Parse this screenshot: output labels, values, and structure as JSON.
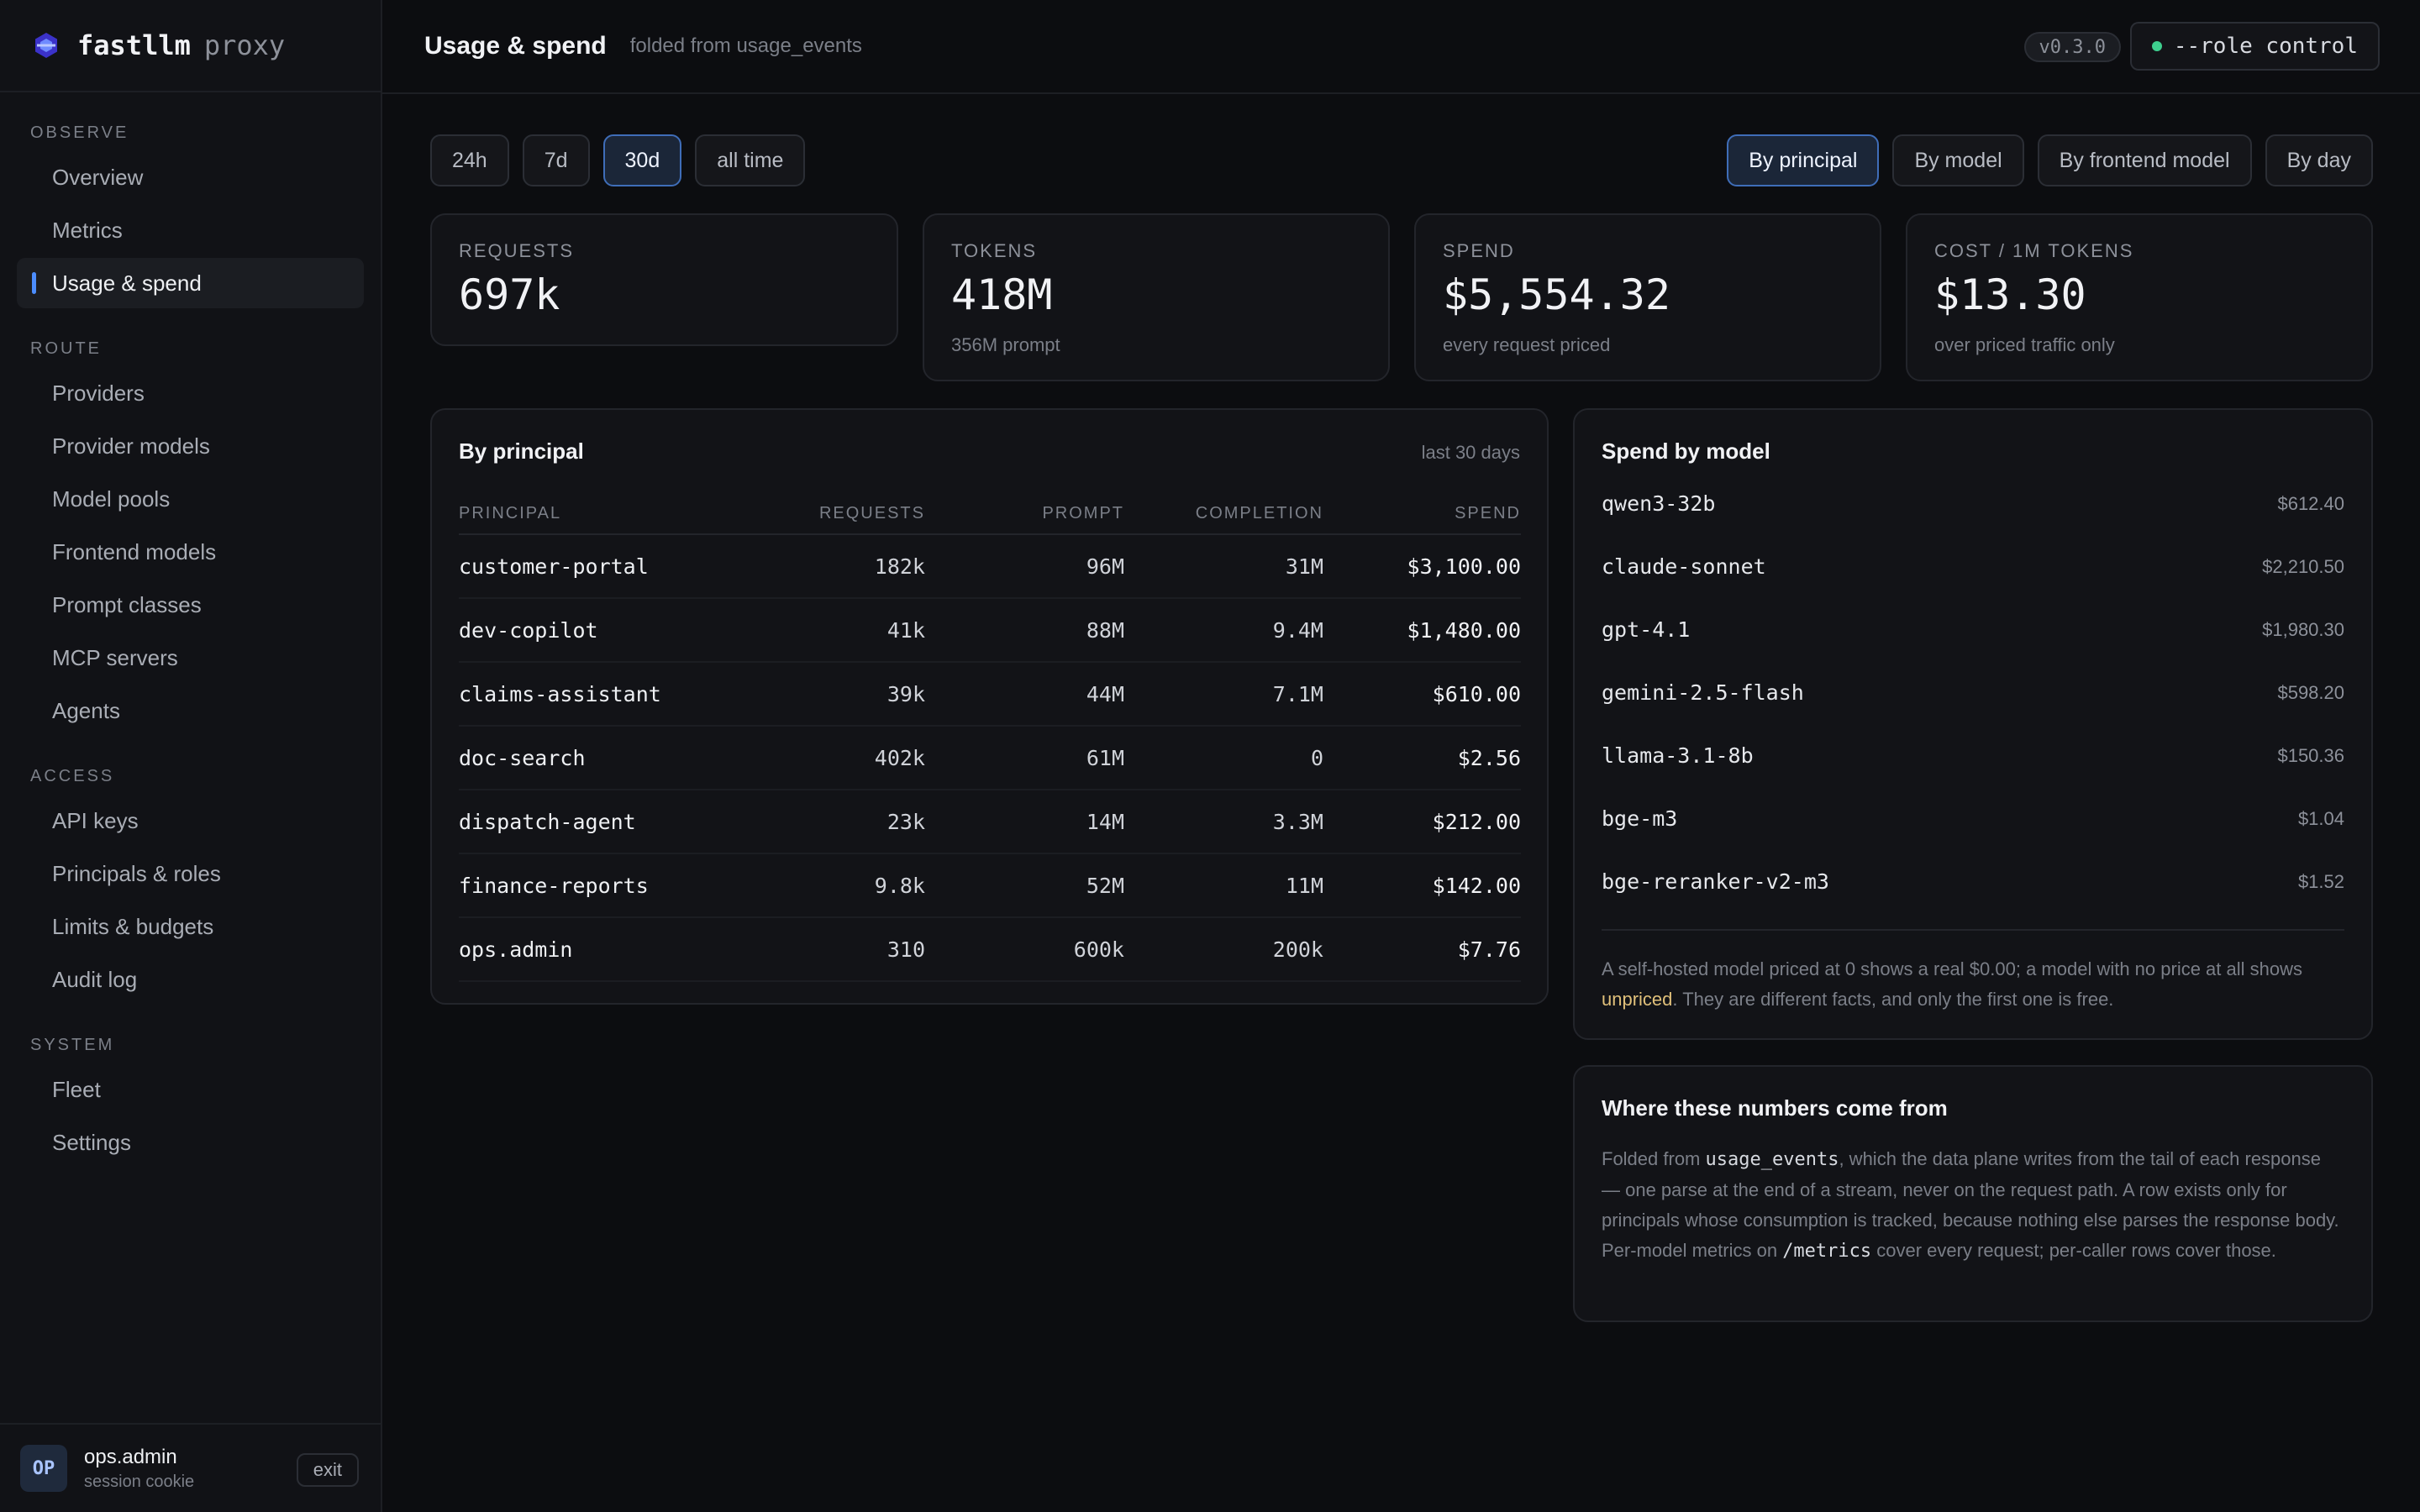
{
  "brand": {
    "name": "fastllm",
    "sub": "proxy"
  },
  "nav": {
    "sections": [
      {
        "heading": "OBSERVE",
        "items": [
          "Overview",
          "Metrics",
          "Usage & spend"
        ]
      },
      {
        "heading": "ROUTE",
        "items": [
          "Providers",
          "Provider models",
          "Model pools",
          "Frontend models",
          "Prompt classes",
          "MCP servers",
          "Agents"
        ]
      },
      {
        "heading": "ACCESS",
        "items": [
          "API keys",
          "Principals & roles",
          "Limits & budgets",
          "Audit log"
        ]
      },
      {
        "heading": "SYSTEM",
        "items": [
          "Fleet",
          "Settings"
        ]
      }
    ],
    "active": "Usage & spend"
  },
  "user": {
    "initials": "OP",
    "name": "ops.admin",
    "sub": "session cookie",
    "exit": "exit"
  },
  "header": {
    "title": "Usage & spend",
    "subtitle": "folded from usage_events",
    "version": "v0.3.0",
    "role": "--role control",
    "role_status_color": "#3ecf8e"
  },
  "ranges": {
    "options": [
      "24h",
      "7d",
      "30d",
      "all time"
    ],
    "selected": "30d"
  },
  "views": {
    "options": [
      "By principal",
      "By model",
      "By frontend model",
      "By day"
    ],
    "selected": "By principal"
  },
  "stats": [
    {
      "label": "REQUESTS",
      "value": "697k",
      "sub": ""
    },
    {
      "label": "TOKENS",
      "value": "418M",
      "sub": "356M prompt"
    },
    {
      "label": "SPEND",
      "value": "$5,554.32",
      "sub": "every request priced"
    },
    {
      "label": "COST / 1M TOKENS",
      "value": "$13.30",
      "sub": "over priced traffic only"
    }
  ],
  "principals": {
    "title": "By principal",
    "period": "last 30 days",
    "columns": [
      "PRINCIPAL",
      "REQUESTS",
      "PROMPT",
      "COMPLETION",
      "SPEND"
    ],
    "rows": [
      [
        "customer-portal",
        "182k",
        "96M",
        "31M",
        "$3,100.00"
      ],
      [
        "dev-copilot",
        "41k",
        "88M",
        "9.4M",
        "$1,480.00"
      ],
      [
        "claims-assistant",
        "39k",
        "44M",
        "7.1M",
        "$610.00"
      ],
      [
        "doc-search",
        "402k",
        "61M",
        "0",
        "$2.56"
      ],
      [
        "dispatch-agent",
        "23k",
        "14M",
        "3.3M",
        "$212.00"
      ],
      [
        "finance-reports",
        "9.8k",
        "52M",
        "11M",
        "$142.00"
      ],
      [
        "ops.admin",
        "310",
        "600k",
        "200k",
        "$7.76"
      ]
    ]
  },
  "spend_by_model": {
    "title": "Spend by model",
    "rows": [
      [
        "qwen3-32b",
        "$612.40"
      ],
      [
        "claude-sonnet",
        "$2,210.50"
      ],
      [
        "gpt-4.1",
        "$1,980.30"
      ],
      [
        "gemini-2.5-flash",
        "$598.20"
      ],
      [
        "llama-3.1-8b",
        "$150.36"
      ],
      [
        "bge-m3",
        "$1.04"
      ],
      [
        "bge-reranker-v2-m3",
        "$1.52"
      ]
    ],
    "note_a": "A self-hosted model priced at 0 shows a real $0.00; a model with no price at all shows ",
    "note_hl": "unpriced",
    "note_b": ". They are different facts, and only the first one is free."
  },
  "provenance": {
    "title": "Where these numbers come from",
    "t1": "Folded from ",
    "c1": "usage_events",
    "t2": ", which the data plane writes from the tail of each response — one parse at the end of a stream, never on the request path. A row exists only for principals whose consumption is tracked, because nothing else parses the response body. Per-model metrics on ",
    "c2": "/metrics",
    "t3": " cover every request; per-caller rows cover those."
  }
}
